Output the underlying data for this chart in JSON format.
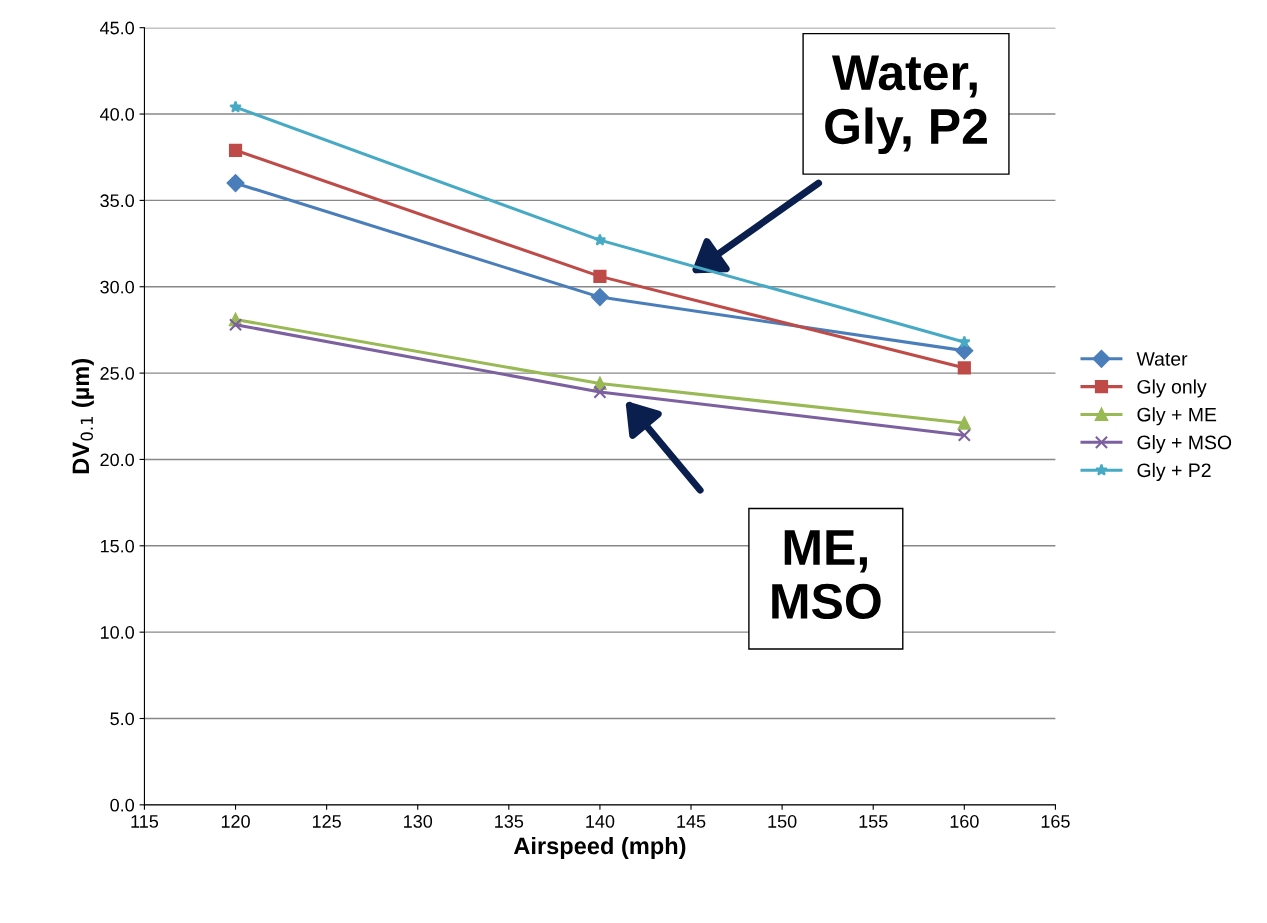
{
  "chart_data": {
    "type": "line",
    "xlabel": "Airspeed (mph)",
    "ylabel": "DV$_{0.1}$ (µm)",
    "x": [
      120,
      140,
      160
    ],
    "series": [
      {
        "name": "Water",
        "color": "#4a7ebb",
        "marker": "diamond",
        "values": [
          36.0,
          29.4,
          26.3
        ]
      },
      {
        "name": "Gly only",
        "color": "#be4b48",
        "marker": "square",
        "values": [
          37.9,
          30.6,
          25.3
        ]
      },
      {
        "name": "Gly + ME",
        "color": "#98b954",
        "marker": "triangle",
        "values": [
          28.1,
          24.4,
          22.1
        ]
      },
      {
        "name": "Gly + MSO",
        "color": "#7d60a0",
        "marker": "cross",
        "values": [
          27.8,
          23.9,
          21.4
        ]
      },
      {
        "name": "Gly + P2",
        "color": "#46aac5",
        "marker": "star",
        "values": [
          40.4,
          32.7,
          26.8
        ]
      }
    ],
    "xlim": [
      115,
      165
    ],
    "xticks": [
      115,
      120,
      125,
      130,
      135,
      140,
      145,
      150,
      155,
      160,
      165
    ],
    "ylim": [
      0,
      45
    ],
    "yticks": [
      {
        "value": 0,
        "label": "0.0"
      },
      {
        "value": 5,
        "label": "5.0"
      },
      {
        "value": 10,
        "label": "10.0"
      },
      {
        "value": 15,
        "label": "15.0"
      },
      {
        "value": 20,
        "label": "20.0"
      },
      {
        "value": 25,
        "label": "25.0"
      },
      {
        "value": 30,
        "label": "30.0"
      },
      {
        "value": 35,
        "label": "35.0"
      },
      {
        "value": 40,
        "label": "40.0"
      },
      {
        "value": 45,
        "label": "45.0"
      }
    ],
    "grid": "y",
    "legend": "right",
    "line_style": "solid",
    "annotations": [
      "Water,\nGly, P2",
      "ME,\nMSO"
    ]
  }
}
